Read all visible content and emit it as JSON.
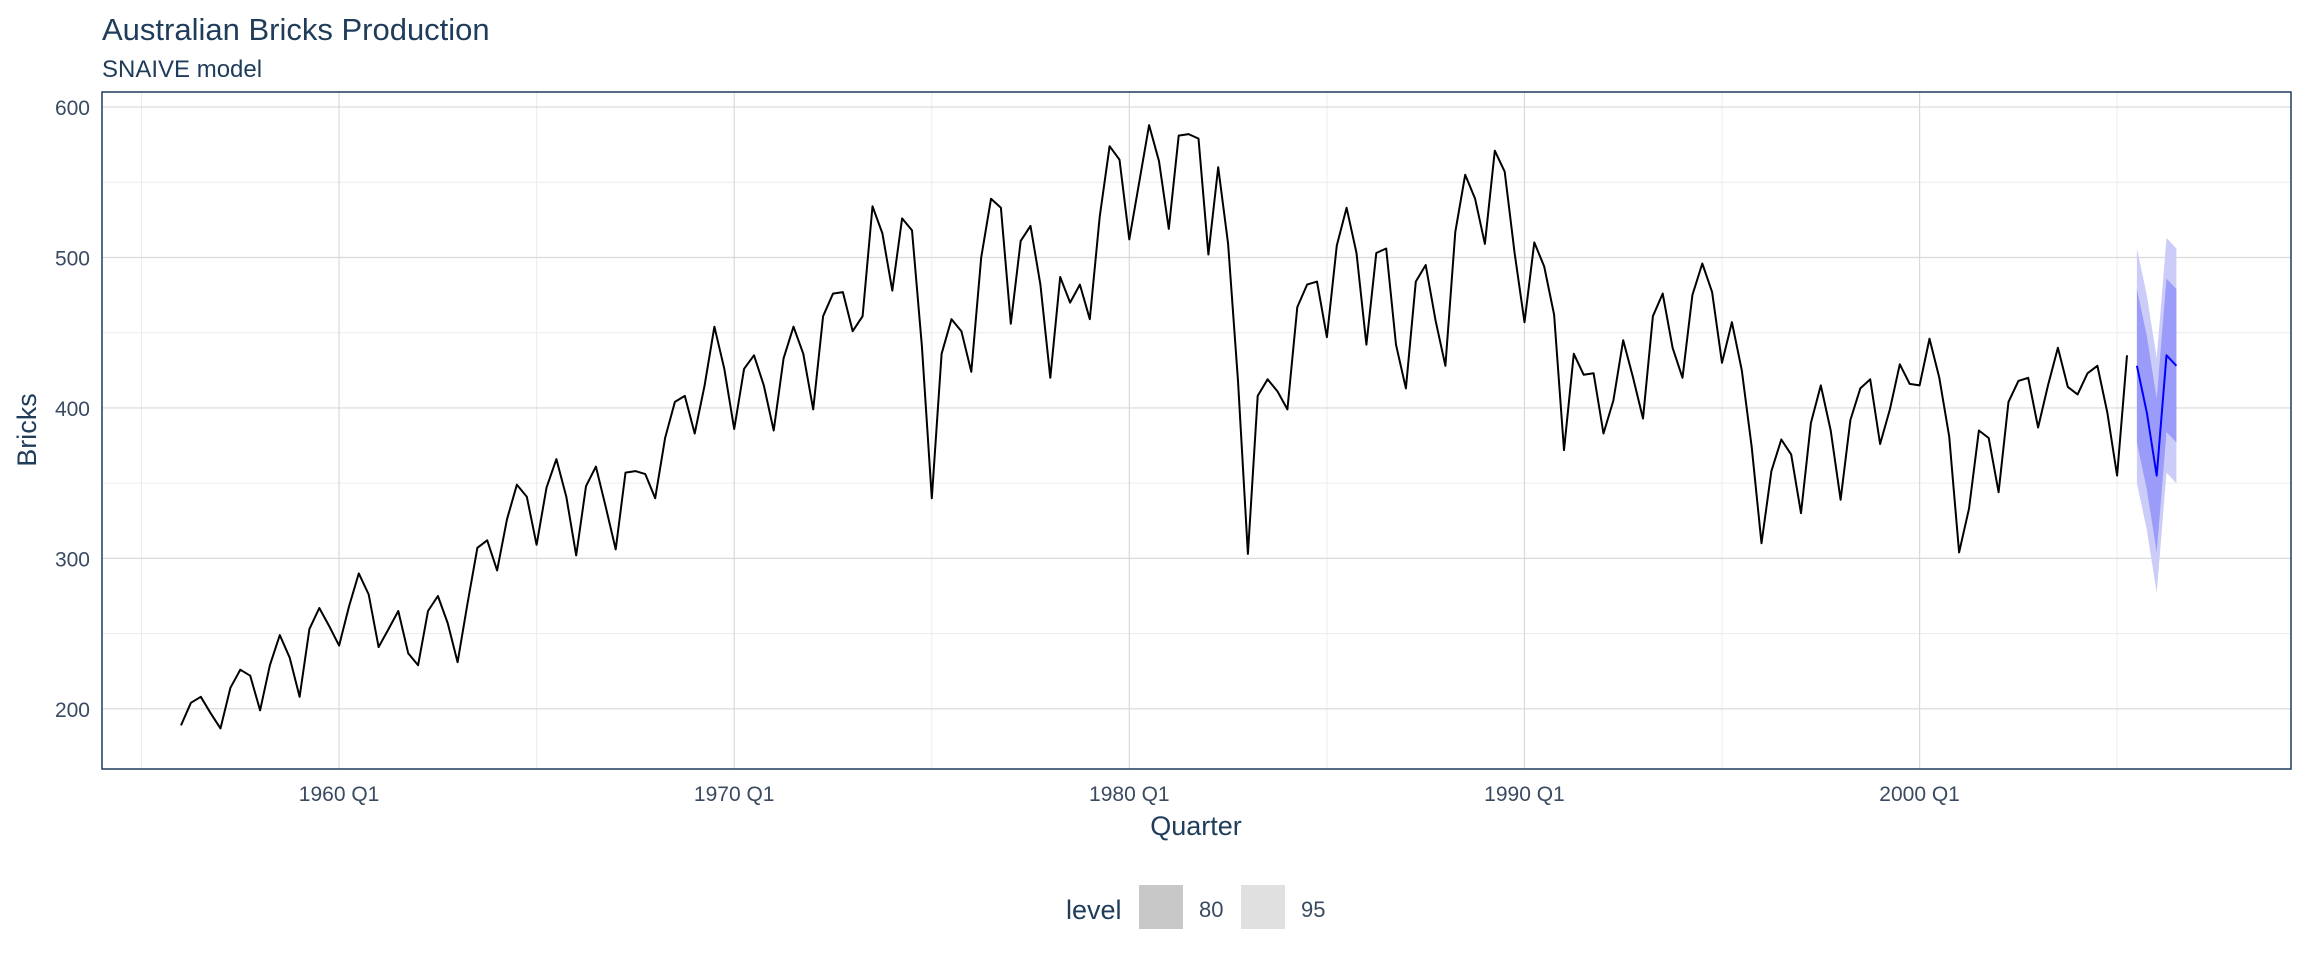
{
  "chart_data": {
    "type": "line",
    "title": "Australian Bricks Production",
    "subtitle": "SNAIVE model",
    "xlabel": "Quarter",
    "ylabel": "Bricks",
    "ylim": [
      160,
      610
    ],
    "xlim": [
      1954.0,
      2009.4
    ],
    "grid": true,
    "x_ticks": [
      {
        "value": 1960.0,
        "label": "1960 Q1"
      },
      {
        "value": 1970.0,
        "label": "1970 Q1"
      },
      {
        "value": 1980.0,
        "label": "1980 Q1"
      },
      {
        "value": 1990.0,
        "label": "1990 Q1"
      },
      {
        "value": 2000.0,
        "label": "2000 Q1"
      }
    ],
    "y_ticks": [
      200,
      300,
      400,
      500,
      600
    ],
    "series": [
      {
        "start": 1956.0,
        "step": 0.25,
        "values": [
          189,
          204,
          208,
          197,
          187,
          214,
          226,
          222,
          199,
          229,
          249,
          234,
          208,
          253,
          267,
          255,
          242,
          268,
          290,
          276,
          241,
          253,
          265,
          237,
          229,
          265,
          275,
          257,
          231,
          270,
          307,
          312,
          292,
          326,
          349,
          341,
          309,
          347,
          366,
          341,
          302,
          348,
          361,
          334,
          306,
          357,
          358,
          356,
          340,
          380,
          404,
          408,
          383,
          415,
          454,
          426,
          386,
          426,
          435,
          415,
          385,
          433,
          454,
          436,
          399,
          461,
          476,
          477,
          451,
          461,
          534,
          516,
          478,
          526,
          518,
          441,
          340,
          436,
          459,
          451,
          424,
          500,
          539,
          533,
          456,
          511,
          521,
          482,
          420,
          487,
          470,
          482,
          459,
          527,
          574,
          565,
          512,
          550,
          588,
          564,
          519,
          581,
          582,
          579,
          502,
          560,
          509,
          418,
          303,
          408,
          419,
          411,
          399,
          467,
          482,
          484,
          447,
          508,
          533,
          503,
          442,
          503,
          506,
          442,
          413,
          484,
          495,
          458,
          428,
          517,
          555,
          539,
          509,
          571,
          557,
          503,
          457,
          510,
          494,
          462,
          372,
          436,
          422,
          423,
          383,
          405,
          445,
          420,
          393,
          461,
          476,
          440,
          420,
          475,
          496,
          477,
          430,
          457,
          425,
          374,
          310,
          358,
          379,
          369,
          330,
          390,
          415,
          385,
          339,
          392,
          413,
          419,
          376,
          399,
          429,
          416,
          415,
          446,
          420,
          381,
          304,
          333,
          385,
          380,
          344,
          404,
          418,
          420,
          387,
          415,
          440,
          414,
          409,
          423,
          428,
          397,
          355,
          435
        ]
      },
      {
        "name": "forecast",
        "start": 2005.5,
        "step": 0.25,
        "values": [
          428,
          397,
          355,
          435,
          428
        ]
      }
    ],
    "intervals": [
      {
        "level": 80,
        "lower": [
          377,
          346,
          304,
          384,
          377
        ],
        "upper": [
          479,
          448,
          406,
          486,
          479
        ]
      },
      {
        "level": 95,
        "lower": [
          350,
          319,
          277,
          357,
          350
        ],
        "upper": [
          506,
          475,
          433,
          513,
          506
        ]
      }
    ],
    "legend": {
      "position": "bottom",
      "title": "level",
      "items": [
        {
          "label": "80"
        },
        {
          "label": "95"
        }
      ]
    },
    "colors": {
      "history_line": "#000000",
      "forecast_line": "#0000ff",
      "band_80": "#9b9bf9",
      "band_95": "#ccccf8",
      "legend_80": "#c8c8c8",
      "legend_95": "#e0e0e0",
      "grid": "#d9d9d9",
      "panel_border": "#1f3c5a",
      "text": "#1f3c5a",
      "tick_text": "#3a4a60"
    }
  }
}
